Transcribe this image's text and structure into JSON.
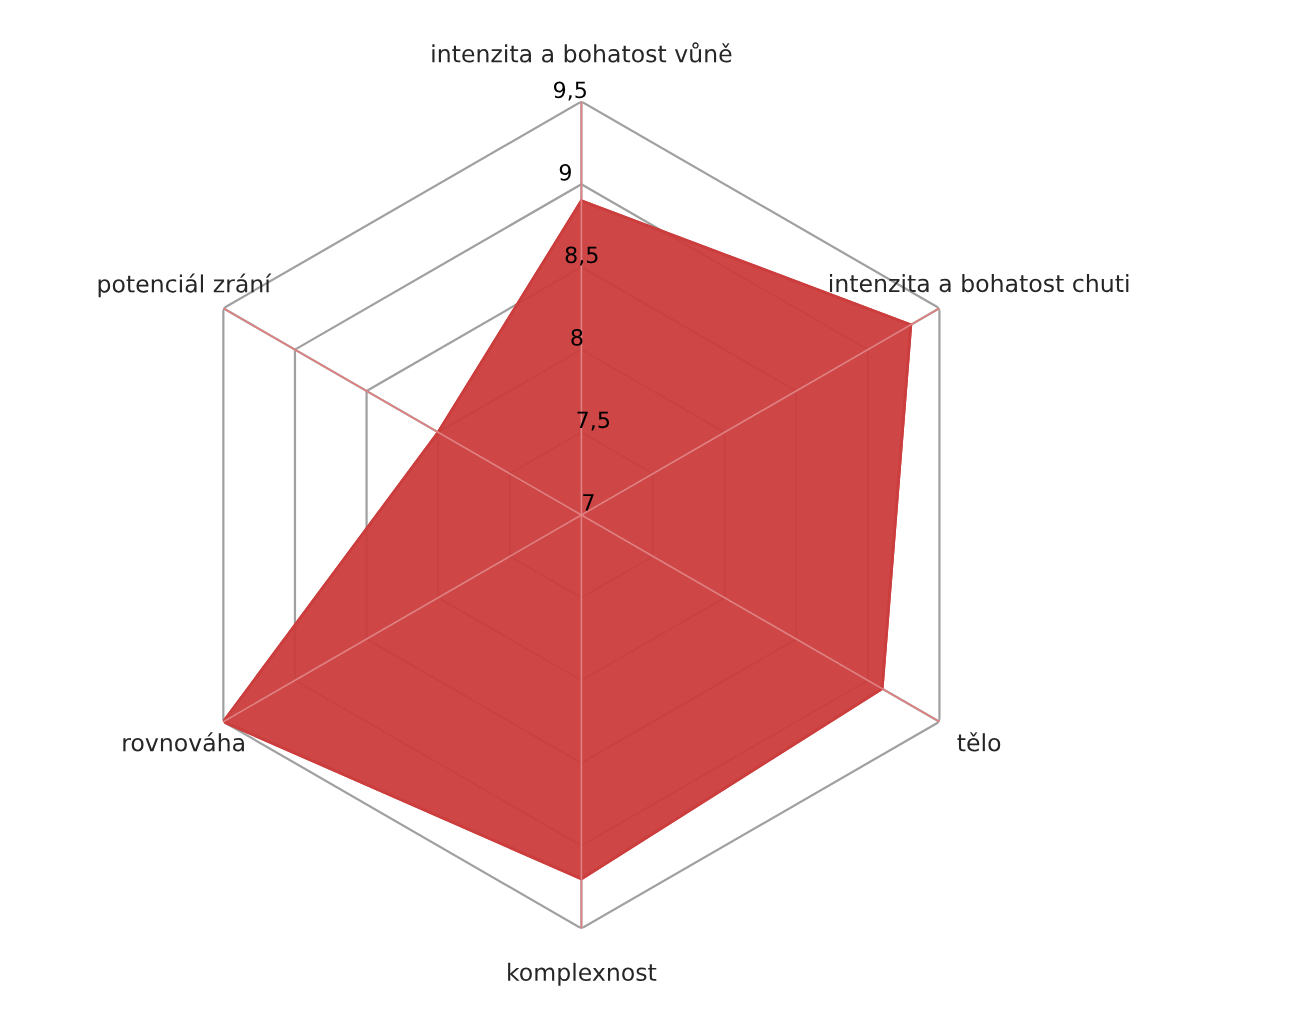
{
  "chart_data": {
    "type": "radar",
    "categories": [
      "intenzita a bohatost vůně",
      "intenzita a bohatost chuti",
      "tělo",
      "komplexnost",
      "rovnováha",
      "potenciál zrání"
    ],
    "series": [
      {
        "color": "#cc3d3d",
        "values": [
          8.9,
          9.3,
          9.1,
          9.2,
          9.5,
          8.0
        ]
      }
    ],
    "ylim": [
      7,
      9.5
    ],
    "yticks": [
      7,
      {
        "value": 7.5,
        "label": "7,5"
      },
      8,
      {
        "value": 8.5,
        "label": "8,5"
      },
      9,
      {
        "value": 9.5,
        "label": "9,5"
      }
    ],
    "grid": true
  }
}
